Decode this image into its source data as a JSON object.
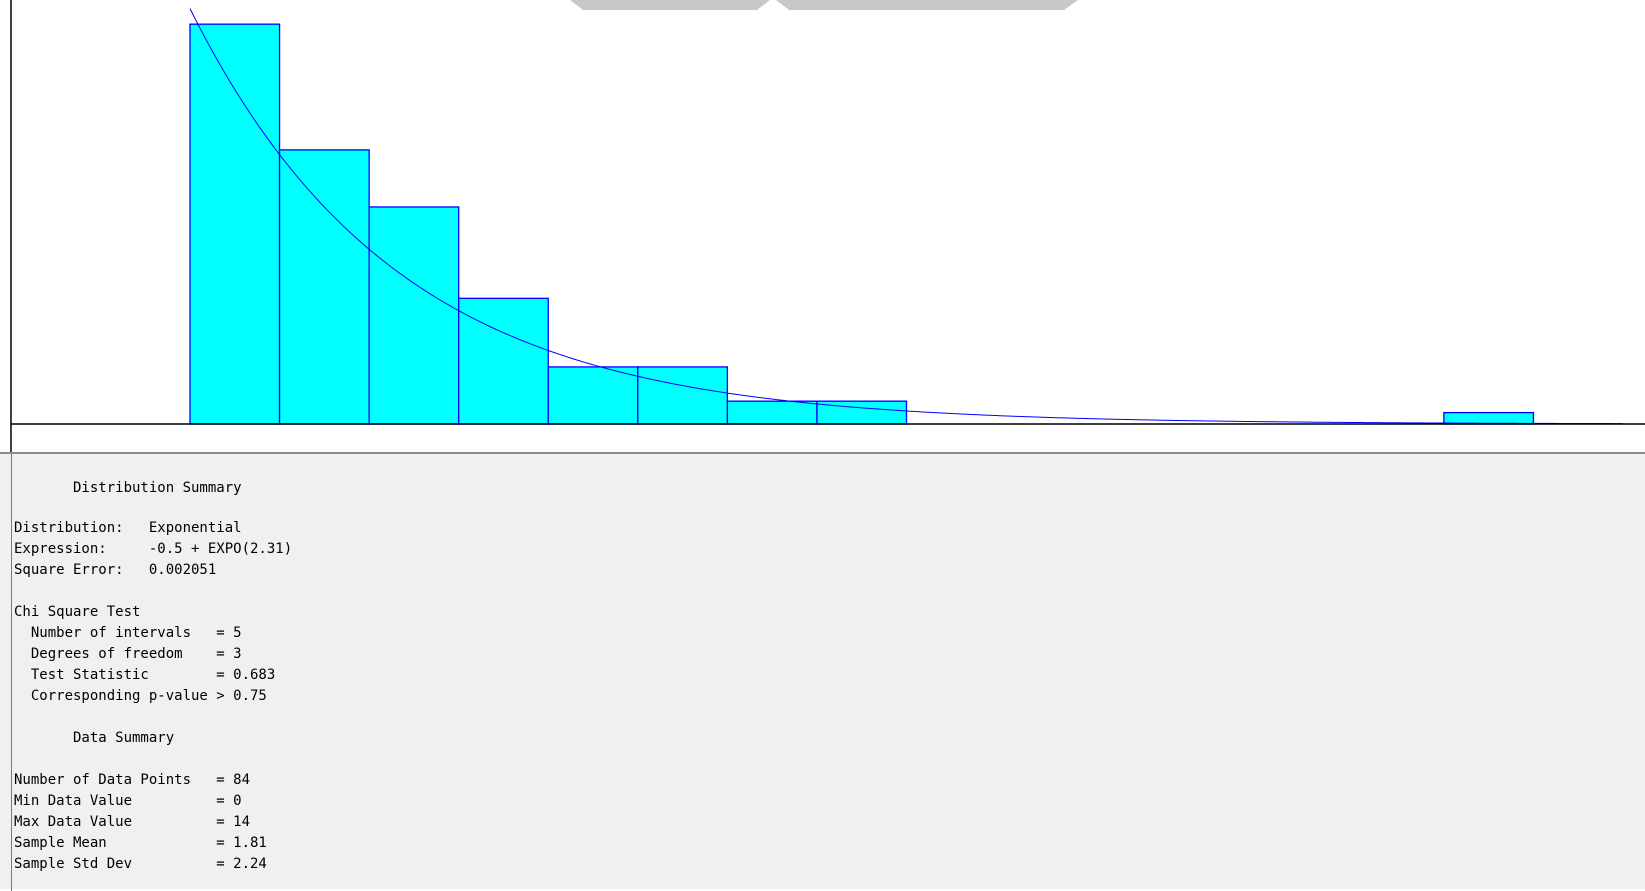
{
  "colors": {
    "bar_fill": "#00ffff",
    "bar_stroke": "#0000ff",
    "curve": "#0000ff",
    "axis": "#000000",
    "panel_background": "#f0f0f0"
  },
  "chart_data": {
    "type": "bar",
    "xlim": [
      -0.5,
      15.5
    ],
    "ylim": [
      0,
      0.42
    ],
    "bins": [
      {
        "x0": -0.5,
        "x1": 0.5,
        "density": 0.4167
      },
      {
        "x0": 0.5,
        "x1": 1.5,
        "density": 0.2857
      },
      {
        "x0": 1.5,
        "x1": 2.5,
        "density": 0.2262
      },
      {
        "x0": 2.5,
        "x1": 3.5,
        "density": 0.131
      },
      {
        "x0": 3.5,
        "x1": 4.5,
        "density": 0.0595
      },
      {
        "x0": 4.5,
        "x1": 5.5,
        "density": 0.0595
      },
      {
        "x0": 5.5,
        "x1": 6.5,
        "density": 0.0238
      },
      {
        "x0": 6.5,
        "x1": 7.5,
        "density": 0.0238
      },
      {
        "x0": 7.5,
        "x1": 8.5,
        "density": 0
      },
      {
        "x0": 8.5,
        "x1": 9.5,
        "density": 0
      },
      {
        "x0": 9.5,
        "x1": 10.5,
        "density": 0
      },
      {
        "x0": 10.5,
        "x1": 11.5,
        "density": 0
      },
      {
        "x0": 11.5,
        "x1": 12.5,
        "density": 0
      },
      {
        "x0": 12.5,
        "x1": 13.5,
        "density": 0
      },
      {
        "x0": 13.5,
        "x1": 14.5,
        "density": 0.0119
      }
    ],
    "fit": {
      "distribution": "Exponential",
      "offset": -0.5,
      "mean": 2.31
    },
    "title": "",
    "xlabel": "",
    "ylabel": "",
    "grid": false
  },
  "summary": {
    "heading": "       Distribution Summary",
    "distribution_line": "Distribution:   Exponential",
    "expression_line": "Expression:     -0.5 + EXPO(2.31)",
    "square_error_line": "Square Error:   0.002051",
    "chi_heading": "Chi Square Test",
    "chi_intervals": "  Number of intervals   = 5",
    "chi_dof": "  Degrees of freedom    = 3",
    "chi_statistic": "  Test Statistic        = 0.683",
    "chi_pvalue": "  Corresponding p-value > 0.75",
    "data_heading": "       Data Summary",
    "data_points": "Number of Data Points   = 84",
    "data_min": "Min Data Value          = 0",
    "data_max": "Max Data Value          = 14",
    "data_mean": "Sample Mean             = 1.81",
    "data_std": "Sample Std Dev          = 2.24"
  }
}
